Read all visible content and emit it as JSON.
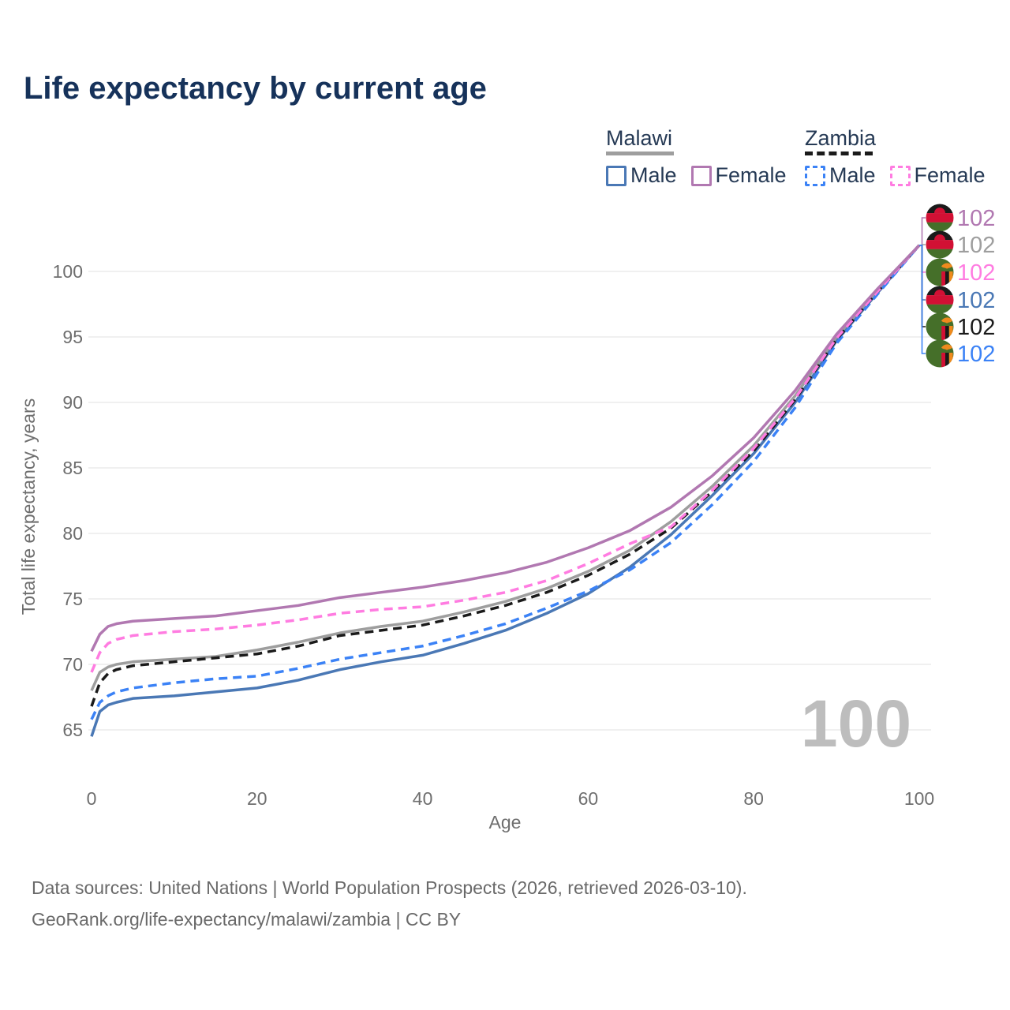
{
  "title": "Life expectancy by current age",
  "legend": {
    "groups": [
      {
        "label": "Malawi",
        "line_style": "solid",
        "underline_color": "#9e9e9e",
        "items": [
          {
            "label": "Male",
            "color": "#4a78b5"
          },
          {
            "label": "Female",
            "color": "#b178b1"
          }
        ]
      },
      {
        "label": "Zambia",
        "line_style": "dashed",
        "underline_color": "#1a1a1a",
        "items": [
          {
            "label": "Male",
            "color": "#3b82f6"
          },
          {
            "label": "Female",
            "color": "#ff7ce1"
          }
        ]
      }
    ]
  },
  "watermark": "100",
  "footer": {
    "line1": "Data sources: United Nations | World Population Prospects (2026, retrieved 2026-03-10).",
    "line2": "GeoRank.org/life-expectancy/malawi/zambia | CC BY"
  },
  "chart_data": {
    "type": "line",
    "title": "Life expectancy by current age",
    "xlabel": "Age",
    "ylabel": "Total life expectancy, years",
    "xlim": [
      0,
      100
    ],
    "ylim": [
      63,
      103
    ],
    "xticks": [
      0,
      20,
      40,
      60,
      80,
      100
    ],
    "yticks": [
      65,
      70,
      75,
      80,
      85,
      90,
      95,
      100
    ],
    "grid": "horizontal",
    "x": [
      0,
      1,
      2,
      3,
      5,
      10,
      15,
      20,
      25,
      30,
      35,
      40,
      45,
      50,
      55,
      60,
      65,
      70,
      75,
      80,
      85,
      90,
      95,
      100
    ],
    "series": [
      {
        "name": "Malawi Female",
        "country": "Malawi",
        "sex": "Female",
        "color": "#b178b1",
        "dash": false,
        "flag": "malawi",
        "end_label": "102",
        "z": 6,
        "values": [
          71,
          72.3,
          72.9,
          73.1,
          73.3,
          73.5,
          73.7,
          74.1,
          74.5,
          75.1,
          75.5,
          75.9,
          76.4,
          77,
          77.8,
          78.9,
          80.2,
          82,
          84.4,
          87.3,
          90.9,
          95.2,
          98.7,
          102
        ]
      },
      {
        "name": "Malawi Total",
        "country": "Malawi",
        "sex": "Total",
        "color": "#9e9e9e",
        "dash": false,
        "flag": "malawi",
        "end_label": "102",
        "z": 2,
        "values": [
          68,
          69.4,
          69.8,
          70,
          70.2,
          70.4,
          70.6,
          71.1,
          71.7,
          72.4,
          72.9,
          73.3,
          74,
          74.8,
          75.8,
          77.1,
          78.7,
          80.9,
          83.6,
          86.7,
          90.5,
          95,
          98.6,
          102
        ]
      },
      {
        "name": "Zambia Female",
        "country": "Zambia",
        "sex": "Female",
        "color": "#ff7ce1",
        "dash": true,
        "flag": "zambia",
        "end_label": "102",
        "z": 5,
        "values": [
          69.4,
          70.9,
          71.6,
          71.9,
          72.2,
          72.5,
          72.7,
          73,
          73.4,
          73.9,
          74.2,
          74.4,
          74.9,
          75.5,
          76.4,
          77.7,
          79.2,
          80.5,
          83.3,
          86.5,
          90.3,
          94.9,
          98.5,
          102
        ]
      },
      {
        "name": "Malawi Male",
        "country": "Malawi",
        "sex": "Male",
        "color": "#4a78b5",
        "dash": false,
        "flag": "malawi",
        "end_label": "102",
        "z": 1,
        "values": [
          64.5,
          66.4,
          66.9,
          67.1,
          67.4,
          67.6,
          67.9,
          68.2,
          68.8,
          69.6,
          70.2,
          70.7,
          71.6,
          72.6,
          73.9,
          75.4,
          77.4,
          79.9,
          82.9,
          86.1,
          90,
          94.7,
          98.4,
          102
        ]
      },
      {
        "name": "Zambia Total",
        "country": "Zambia",
        "sex": "Total",
        "color": "#1a1a1a",
        "dash": true,
        "flag": "zambia",
        "end_label": "102",
        "z": 4,
        "values": [
          66.8,
          68.6,
          69.3,
          69.6,
          69.9,
          70.2,
          70.5,
          70.8,
          71.4,
          72.2,
          72.6,
          73,
          73.7,
          74.5,
          75.5,
          76.8,
          78.4,
          80.4,
          83.2,
          86.3,
          90.2,
          94.8,
          98.5,
          102
        ]
      },
      {
        "name": "Zambia Male",
        "country": "Zambia",
        "sex": "Male",
        "color": "#3b82f6",
        "dash": true,
        "flag": "zambia",
        "end_label": "102",
        "z": 3,
        "values": [
          65.8,
          67.1,
          67.6,
          67.9,
          68.2,
          68.6,
          68.9,
          69.1,
          69.7,
          70.4,
          70.9,
          71.4,
          72.2,
          73.1,
          74.3,
          75.6,
          77.2,
          79.3,
          82.2,
          85.5,
          89.6,
          94.5,
          98.3,
          102
        ]
      }
    ]
  }
}
